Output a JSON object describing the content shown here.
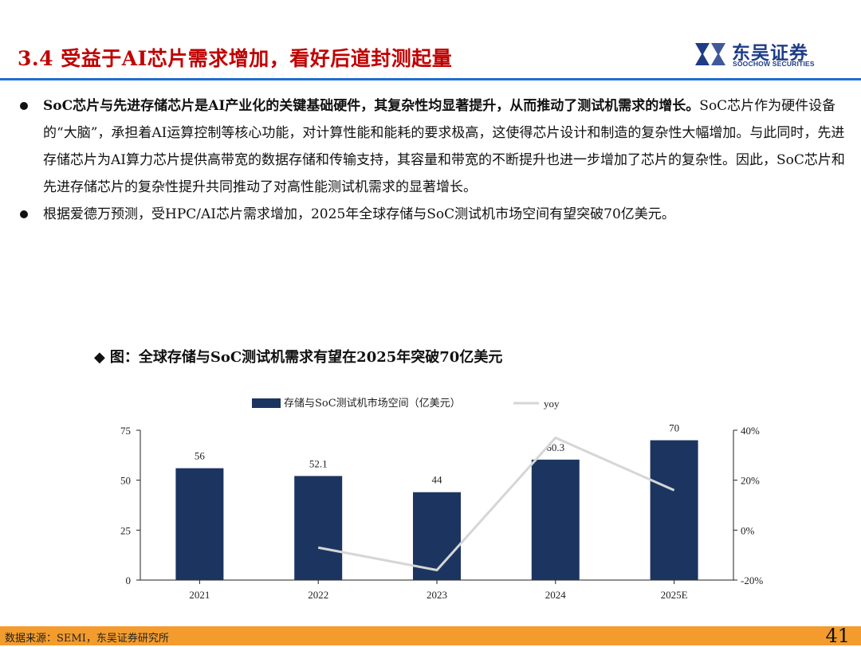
{
  "header": {
    "title": "3.4 受益于AI芯片需求增加，看好后道封测起量",
    "logo_cn": "东吴证券",
    "logo_en": "SOOCHOW SECURITIES",
    "accent_color": "#c00000",
    "rule_color": "#1d6fd1"
  },
  "bullets": [
    {
      "lead": "SoC芯片与先进存储芯片是AI产业化的关键基础硬件，其复杂性均显著提升，从而推动了测试机需求的增长。",
      "body": "SoC芯片作为硬件设备的“大脑”，承担着AI运算控制等核心功能，对计算性能和能耗的要求极高，这使得芯片设计和制造的复杂性大幅增加。与此同时，先进存储芯片为AI算力芯片提供高带宽的数据存储和传输支持，其容量和带宽的不断提升也进一步增加了芯片的复杂性。因此，SoC芯片和先进存储芯片的复杂性提升共同推动了对高性能测试机需求的显著增长。"
    },
    {
      "lead": "",
      "body": "根据爱德万预测，受HPC/AI芯片需求增加，2025年全球存储与SoC测试机市场空间有望突破70亿美元。"
    }
  ],
  "chart_caption": {
    "marker": "◆",
    "text": "图：全球存储与SoC测试机需求有望在2025年突破70亿美元"
  },
  "chart_data": {
    "type": "bar",
    "categories": [
      "2021",
      "2022",
      "2023",
      "2024",
      "2025E"
    ],
    "series": [
      {
        "name": "存储与SoC测试机市场空间（亿美元）",
        "type": "bar",
        "axis": "left",
        "values": [
          56,
          52.1,
          44,
          60.3,
          70
        ],
        "color": "#1c3560"
      },
      {
        "name": "yoy",
        "type": "line",
        "axis": "right",
        "values": [
          null,
          -7,
          -16,
          37,
          16
        ],
        "color": "#d6d6d6"
      }
    ],
    "data_labels": [
      "56",
      "52.1",
      "44",
      "60.3",
      "70"
    ],
    "ylim": [
      0,
      75
    ],
    "yticks": [
      "0",
      "25",
      "50",
      "75"
    ],
    "y2lim": [
      -20,
      40
    ],
    "y2ticks": [
      "-20%",
      "0%",
      "20%",
      "40%"
    ],
    "legend_position": "top",
    "grid": false
  },
  "footer": {
    "source": "数据来源：SEMI，东吴证券研究所",
    "page": "41",
    "color": "#f39c2d"
  }
}
